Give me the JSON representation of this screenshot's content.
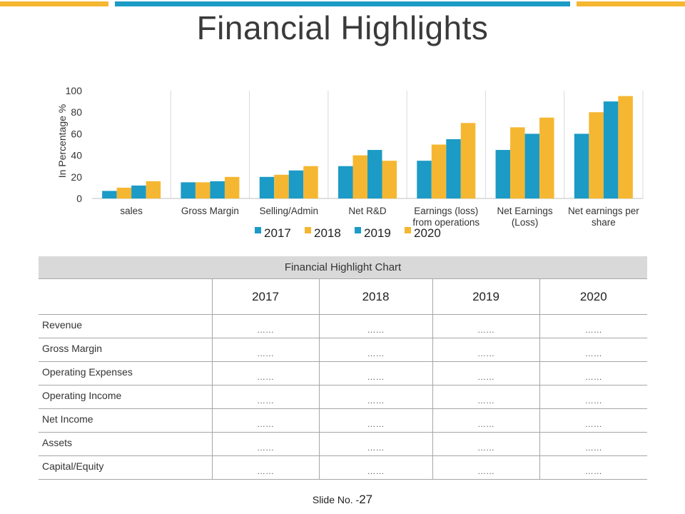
{
  "slide": {
    "title": "Financial Highlights",
    "slide_no_label": "Slide No. -",
    "slide_no": "27"
  },
  "colors": {
    "blue": "#1b9bc6",
    "yellow": "#f5b731",
    "header_gray": "#d9d9d9"
  },
  "chart_data": {
    "type": "bar",
    "title": "",
    "xlabel": "",
    "ylabel": "In Percentage %",
    "ylim": [
      0,
      100
    ],
    "yticks": [
      0,
      20,
      40,
      60,
      80,
      100
    ],
    "grid": "vertical category separators",
    "legend_position": "bottom",
    "categories": [
      [
        "sales"
      ],
      [
        "Gross Margin"
      ],
      [
        "Selling/Admin"
      ],
      [
        "Net R&D"
      ],
      [
        "Earnings (loss)",
        "from operations"
      ],
      [
        "Net Earnings",
        "(Loss)"
      ],
      [
        "Net earnings per",
        "share"
      ]
    ],
    "series": [
      {
        "name": "2017",
        "color": "#1b9bc6",
        "values": [
          7,
          15,
          20,
          30,
          35,
          45,
          60
        ]
      },
      {
        "name": "2018",
        "color": "#f5b731",
        "values": [
          10,
          15,
          22,
          40,
          50,
          66,
          80
        ]
      },
      {
        "name": "2019",
        "color": "#1b9bc6",
        "values": [
          12,
          16,
          26,
          45,
          55,
          60,
          90
        ]
      },
      {
        "name": "2020",
        "color": "#f5b731",
        "values": [
          16,
          20,
          30,
          35,
          70,
          75,
          95
        ]
      }
    ]
  },
  "table": {
    "caption": "Financial Highlight Chart",
    "years": [
      "2017",
      "2018",
      "2019",
      "2020"
    ],
    "rows": [
      {
        "label": "Revenue",
        "values": [
          "……",
          "……",
          "……",
          "……"
        ]
      },
      {
        "label": "Gross Margin",
        "values": [
          "……",
          "……",
          "……",
          "……"
        ]
      },
      {
        "label": "Operating Expenses",
        "values": [
          "……",
          "……",
          "……",
          "……"
        ]
      },
      {
        "label": "Operating Income",
        "values": [
          "……",
          "……",
          "……",
          "……"
        ]
      },
      {
        "label": "Net Income",
        "values": [
          "……",
          "……",
          "……",
          "……"
        ]
      },
      {
        "label": "Assets",
        "values": [
          "……",
          "……",
          "……",
          "……"
        ]
      },
      {
        "label": "Capital/Equity",
        "values": [
          "……",
          "……",
          "……",
          "……"
        ]
      }
    ]
  }
}
